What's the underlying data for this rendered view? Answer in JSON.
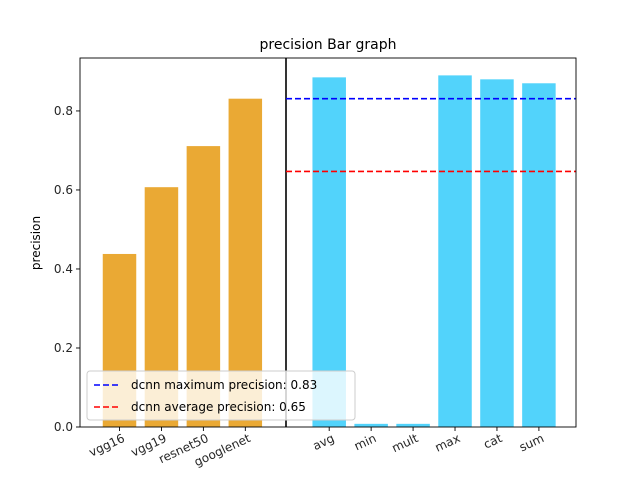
{
  "chart_data": {
    "type": "bar",
    "title": "precision Bar graph",
    "ylabel": "precision",
    "xlabel": "",
    "ylim": [
      0,
      0.934
    ],
    "yticks": [
      0.0,
      0.2,
      0.4,
      0.6,
      0.8
    ],
    "categories": [
      "vgg16",
      "vgg19",
      "resnet50",
      "googlenet",
      "avg",
      "min",
      "mult",
      "max",
      "cat",
      "sum"
    ],
    "groups": [
      {
        "categories": [
          "vgg16",
          "vgg19",
          "resnet50",
          "googlenet"
        ],
        "values": [
          0.438,
          0.607,
          0.711,
          0.831
        ],
        "color": "#EAA934"
      },
      {
        "categories": [
          "avg",
          "min",
          "mult",
          "max",
          "cat",
          "sum"
        ],
        "values": [
          0.885,
          0.008,
          0.008,
          0.89,
          0.88,
          0.87
        ],
        "color": "#52D3FB"
      }
    ],
    "separator_line": {
      "color": "#000000"
    },
    "reference_lines": [
      {
        "label": "dcnn maximum precision: 0.83",
        "value": 0.831,
        "color": "#0000FF",
        "style": "dashed"
      },
      {
        "label": "dcnn average precision: 0.65",
        "value": 0.647,
        "color": "#FF0000",
        "style": "dashed"
      }
    ],
    "legend_position": "lower-left",
    "grid": false
  }
}
